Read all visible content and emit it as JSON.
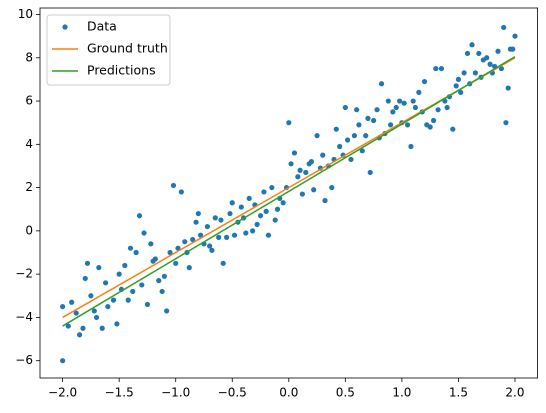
{
  "chart_data": {
    "type": "line",
    "xlim": [
      -2.2,
      2.2
    ],
    "ylim": [
      -6.8,
      10.3
    ],
    "xticks": [
      {
        "value": -2,
        "label": "−2.0"
      },
      {
        "value": -1.5,
        "label": "−1.5"
      },
      {
        "value": -1,
        "label": "−1.0"
      },
      {
        "value": -0.5,
        "label": "−0.5"
      },
      {
        "value": 0,
        "label": "0.0"
      },
      {
        "value": 0.5,
        "label": "0.5"
      },
      {
        "value": 1,
        "label": "1.0"
      },
      {
        "value": 1.5,
        "label": "1.5"
      },
      {
        "value": 2,
        "label": "2.0"
      }
    ],
    "yticks": [
      {
        "value": -6,
        "label": "−6"
      },
      {
        "value": -4,
        "label": "−4"
      },
      {
        "value": -2,
        "label": "−2"
      },
      0,
      2,
      4,
      6,
      8,
      10
    ],
    "legend": "upper left",
    "series": [
      {
        "name": "Data",
        "color": "#1f77b4",
        "style": "points",
        "x": [
          -2.0,
          -2.0,
          -1.95,
          -1.92,
          -1.88,
          -1.85,
          -1.82,
          -1.8,
          -1.78,
          -1.75,
          -1.72,
          -1.7,
          -1.68,
          -1.65,
          -1.62,
          -1.6,
          -1.55,
          -1.52,
          -1.5,
          -1.48,
          -1.45,
          -1.42,
          -1.4,
          -1.38,
          -1.35,
          -1.32,
          -1.3,
          -1.28,
          -1.25,
          -1.22,
          -1.2,
          -1.18,
          -1.15,
          -1.12,
          -1.1,
          -1.08,
          -1.05,
          -1.02,
          -1.0,
          -0.98,
          -0.95,
          -0.92,
          -0.9,
          -0.88,
          -0.85,
          -0.82,
          -0.8,
          -0.78,
          -0.75,
          -0.72,
          -0.7,
          -0.68,
          -0.65,
          -0.62,
          -0.6,
          -0.58,
          -0.55,
          -0.52,
          -0.5,
          -0.48,
          -0.45,
          -0.42,
          -0.4,
          -0.38,
          -0.35,
          -0.32,
          -0.3,
          -0.28,
          -0.25,
          -0.22,
          -0.2,
          -0.18,
          -0.15,
          -0.12,
          -0.1,
          -0.08,
          -0.05,
          -0.02,
          0.0,
          0.02,
          0.05,
          0.08,
          0.1,
          0.12,
          0.15,
          0.18,
          0.2,
          0.22,
          0.25,
          0.28,
          0.3,
          0.32,
          0.35,
          0.38,
          0.4,
          0.42,
          0.45,
          0.48,
          0.5,
          0.52,
          0.55,
          0.58,
          0.6,
          0.62,
          0.65,
          0.68,
          0.7,
          0.72,
          0.75,
          0.78,
          0.8,
          0.82,
          0.85,
          0.88,
          0.9,
          0.92,
          0.95,
          0.98,
          1.0,
          1.02,
          1.05,
          1.08,
          1.1,
          1.12,
          1.15,
          1.18,
          1.2,
          1.22,
          1.25,
          1.28,
          1.3,
          1.32,
          1.35,
          1.38,
          1.4,
          1.42,
          1.45,
          1.48,
          1.5,
          1.52,
          1.55,
          1.58,
          1.6,
          1.62,
          1.65,
          1.68,
          1.7,
          1.72,
          1.75,
          1.78,
          1.8,
          1.82,
          1.85,
          1.88,
          1.9,
          1.92,
          1.94,
          1.96,
          1.98,
          2.0
        ],
        "values": [
          -3.5,
          -6.0,
          -4.4,
          -3.3,
          -3.8,
          -4.8,
          -4.5,
          -2.2,
          -1.5,
          -3.0,
          -3.7,
          -4.0,
          -1.7,
          -4.5,
          -2.4,
          -3.5,
          -3.2,
          -4.3,
          -2.0,
          -2.7,
          -1.6,
          -3.2,
          -0.8,
          -2.8,
          -1.0,
          0.7,
          -2.5,
          -0.1,
          -3.4,
          -0.6,
          -1.4,
          -1.3,
          -2.3,
          -2.8,
          -2.1,
          -3.7,
          -1.0,
          2.1,
          -1.5,
          -0.8,
          1.8,
          -0.5,
          -1.0,
          -1.7,
          -0.4,
          0.4,
          0.8,
          -0.2,
          -0.6,
          0.2,
          -0.7,
          -0.9,
          0.6,
          -0.3,
          0.5,
          -1.5,
          -0.3,
          0.8,
          1.3,
          -0.2,
          0.4,
          1.1,
          0.6,
          -0.1,
          1.5,
          0.0,
          1.2,
          0.3,
          0.7,
          1.8,
          0.9,
          -0.2,
          2.0,
          0.5,
          1.0,
          1.5,
          1.3,
          2.0,
          5.0,
          3.1,
          3.6,
          2.5,
          2.8,
          1.7,
          2.7,
          3.1,
          3.2,
          1.9,
          4.4,
          2.9,
          3.5,
          1.4,
          3.0,
          2.0,
          3.3,
          4.7,
          3.9,
          3.5,
          5.7,
          4.2,
          3.3,
          4.4,
          5.6,
          4.9,
          3.7,
          4.4,
          5.2,
          2.7,
          5.1,
          5.6,
          4.3,
          6.8,
          4.5,
          6.0,
          4.9,
          5.5,
          5.7,
          6.0,
          5.0,
          5.9,
          4.9,
          3.9,
          6.0,
          5.7,
          6.4,
          5.5,
          6.9,
          4.9,
          4.8,
          5.1,
          7.5,
          5.6,
          7.5,
          6.0,
          5.7,
          6.2,
          4.7,
          6.7,
          7.0,
          6.4,
          7.3,
          8.2,
          6.8,
          8.6,
          7.3,
          8.2,
          7.1,
          7.9,
          8.0,
          7.7,
          7.3,
          7.6,
          8.3,
          7.5,
          9.4,
          5.0,
          6.6,
          8.4,
          8.4,
          9.0
        ]
      },
      {
        "name": "Ground truth",
        "color": "#ff7f0e",
        "style": "line",
        "x": [
          -2,
          2
        ],
        "values": [
          -4,
          8
        ]
      },
      {
        "name": "Predictions",
        "color": "#2ca02c",
        "style": "line",
        "x": [
          -2,
          2
        ],
        "values": [
          -4.4,
          8.05
        ]
      }
    ]
  }
}
